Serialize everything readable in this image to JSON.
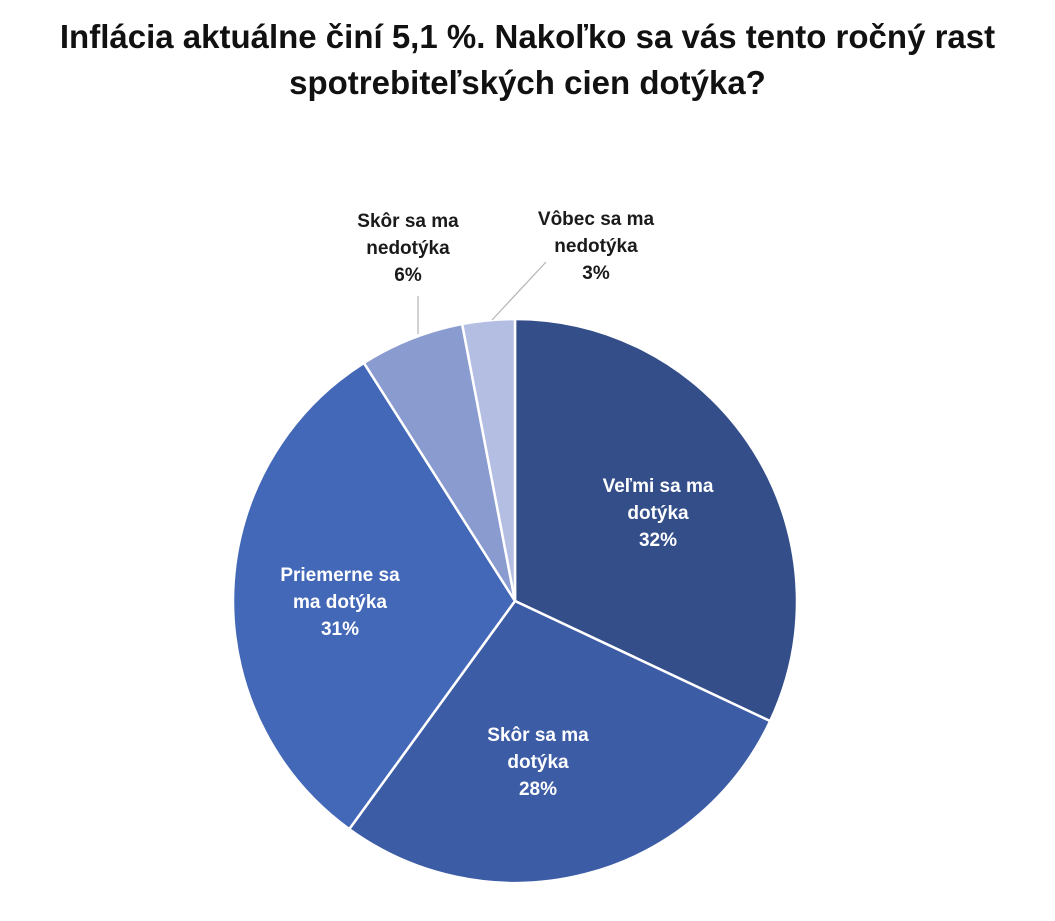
{
  "chart_data": {
    "type": "pie",
    "title_lines": [
      "Inflácia aktuálne činí 5,1 %. Nakoľko sa vás tento ročný rast",
      "spotrebiteľských cien dotýka?"
    ],
    "slices": [
      {
        "label_lines": [
          "Veľmi sa ma",
          "dotýka"
        ],
        "value": 32,
        "display": "32%",
        "color": "#344E8A",
        "label_color": "#ffffff"
      },
      {
        "label_lines": [
          "Skôr sa ma",
          "dotýka"
        ],
        "value": 28,
        "display": "28%",
        "color": "#3D5CA6",
        "label_color": "#ffffff"
      },
      {
        "label_lines": [
          "Priemerne sa",
          "ma dotýka"
        ],
        "value": 31,
        "display": "31%",
        "color": "#4468B8",
        "label_color": "#ffffff"
      },
      {
        "label_lines": [
          "Skôr sa ma",
          "nedotýka"
        ],
        "value": 6,
        "display": "6%",
        "color": "#8A9BD0",
        "label_color": "#1a1a1a"
      },
      {
        "label_lines": [
          "Vôbec sa ma",
          "nedotýka"
        ],
        "value": 3,
        "display": "3%",
        "color": "#B4BEE3",
        "label_color": "#1a1a1a"
      }
    ],
    "start": "12 o'clock",
    "direction": "clockwise",
    "legend": "none"
  }
}
